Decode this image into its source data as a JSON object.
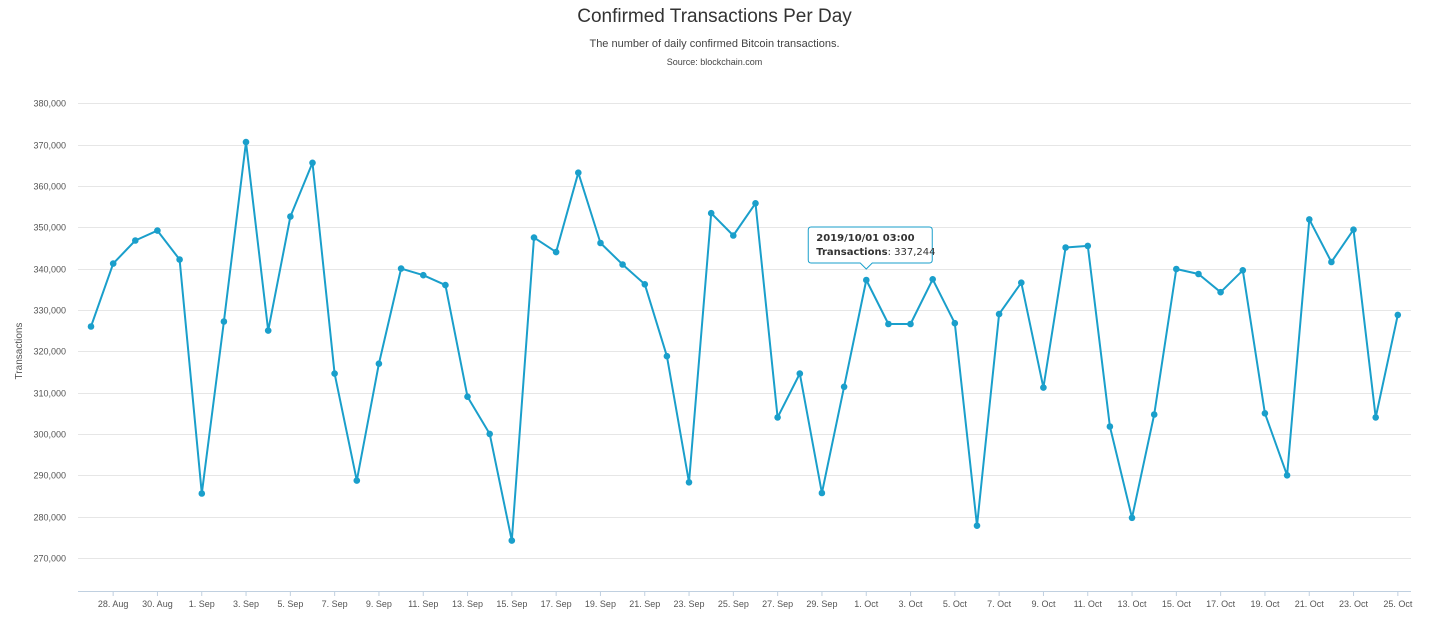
{
  "chart_data": {
    "type": "line",
    "title": "Confirmed Transactions Per Day",
    "subtitle": "The number of daily confirmed Bitcoin transactions.",
    "source": "Source: blockchain.com",
    "ylabel": "Transactions",
    "xlabel": "",
    "ylim": [
      262000,
      382000
    ],
    "y_ticks": [
      270000,
      280000,
      290000,
      300000,
      310000,
      320000,
      330000,
      340000,
      350000,
      360000,
      370000,
      380000
    ],
    "y_tick_labels": [
      "270,000",
      "280,000",
      "290,000",
      "300,000",
      "310,000",
      "320,000",
      "330,000",
      "340,000",
      "350,000",
      "360,000",
      "370,000",
      "380,000"
    ],
    "x_start_date": "2019-08-27",
    "x_tick_labels": [
      "28. Aug",
      "30. Aug",
      "1. Sep",
      "3. Sep",
      "5. Sep",
      "7. Sep",
      "9. Sep",
      "11. Sep",
      "13. Sep",
      "15. Sep",
      "17. Sep",
      "19. Sep",
      "21. Sep",
      "23. Sep",
      "25. Sep",
      "27. Sep",
      "29. Sep",
      "1. Oct",
      "3. Oct",
      "5. Oct",
      "7. Oct",
      "9. Oct",
      "11. Oct",
      "13. Oct",
      "15. Oct",
      "17. Oct",
      "19. Oct",
      "21. Oct",
      "23. Oct",
      "25. Oct"
    ],
    "grid": true,
    "color": "#1a9fcb",
    "series": [
      {
        "name": "Transactions",
        "x": [
          "2019-08-27",
          "2019-08-28",
          "2019-08-29",
          "2019-08-30",
          "2019-08-31",
          "2019-09-01",
          "2019-09-02",
          "2019-09-03",
          "2019-09-04",
          "2019-09-05",
          "2019-09-06",
          "2019-09-07",
          "2019-09-08",
          "2019-09-09",
          "2019-09-10",
          "2019-09-11",
          "2019-09-12",
          "2019-09-13",
          "2019-09-14",
          "2019-09-15",
          "2019-09-16",
          "2019-09-17",
          "2019-09-18",
          "2019-09-19",
          "2019-09-20",
          "2019-09-21",
          "2019-09-22",
          "2019-09-23",
          "2019-09-24",
          "2019-09-25",
          "2019-09-26",
          "2019-09-27",
          "2019-09-28",
          "2019-09-29",
          "2019-09-30",
          "2019-10-01",
          "2019-10-02",
          "2019-10-03",
          "2019-10-04",
          "2019-10-05",
          "2019-10-06",
          "2019-10-07",
          "2019-10-08",
          "2019-10-09",
          "2019-10-10",
          "2019-10-11",
          "2019-10-12",
          "2019-10-13",
          "2019-10-14",
          "2019-10-15",
          "2019-10-16",
          "2019-10-17",
          "2019-10-18",
          "2019-10-19",
          "2019-10-20",
          "2019-10-21",
          "2019-10-22",
          "2019-10-23",
          "2019-10-24",
          "2019-10-25"
        ],
        "values": [
          326000,
          341200,
          346800,
          349200,
          342200,
          285600,
          327200,
          370600,
          325000,
          352600,
          365600,
          314600,
          288700,
          317000,
          340000,
          338400,
          336000,
          309000,
          300000,
          274200,
          347500,
          344000,
          363200,
          346200,
          341000,
          336200,
          318800,
          288300,
          353400,
          348000,
          355800,
          304000,
          314600,
          285700,
          311400,
          337244,
          326600,
          326600,
          337400,
          326800,
          277800,
          329000,
          336600,
          311200,
          345100,
          345500,
          301800,
          279700,
          304700,
          339900,
          338700,
          334300,
          339600,
          305000,
          290000,
          351900,
          341600,
          349400,
          304000,
          328800
        ]
      }
    ]
  },
  "tooltip": {
    "date": "2019/10/01 03:00",
    "label": "Transactions",
    "value": "337,244",
    "index": 35
  }
}
